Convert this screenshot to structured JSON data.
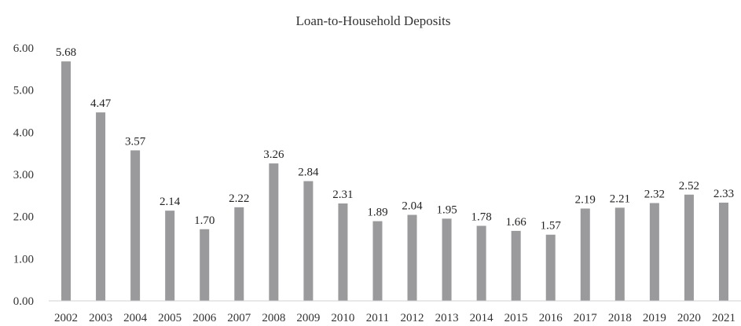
{
  "chart_data": {
    "type": "bar",
    "title": "Loan-to-Household Deposits",
    "xlabel": "",
    "ylabel": "",
    "ylim": [
      0,
      6
    ],
    "y_ticks": [
      "0.00",
      "1.00",
      "2.00",
      "3.00",
      "4.00",
      "5.00",
      "6.00"
    ],
    "grid": false,
    "legend": "none",
    "bar_color": "#9a9a9c",
    "categories": [
      "2002",
      "2003",
      "2004",
      "2005",
      "2006",
      "2007",
      "2008",
      "2009",
      "2010",
      "2011",
      "2012",
      "2013",
      "2014",
      "2015",
      "2016",
      "2017",
      "2018",
      "2019",
      "2020",
      "2021"
    ],
    "values": [
      5.68,
      4.47,
      3.57,
      2.14,
      1.7,
      2.22,
      3.26,
      2.84,
      2.31,
      1.89,
      2.04,
      1.95,
      1.78,
      1.66,
      1.57,
      2.19,
      2.21,
      2.32,
      2.52,
      2.33
    ],
    "data_labels": [
      "5.68",
      "4.47",
      "3.57",
      "2.14",
      "1.70",
      "2.22",
      "3.26",
      "2.84",
      "2.31",
      "1.89",
      "2.04",
      "1.95",
      "1.78",
      "1.66",
      "1.57",
      "2.19",
      "2.21",
      "2.32",
      "2.52",
      "2.33"
    ]
  }
}
